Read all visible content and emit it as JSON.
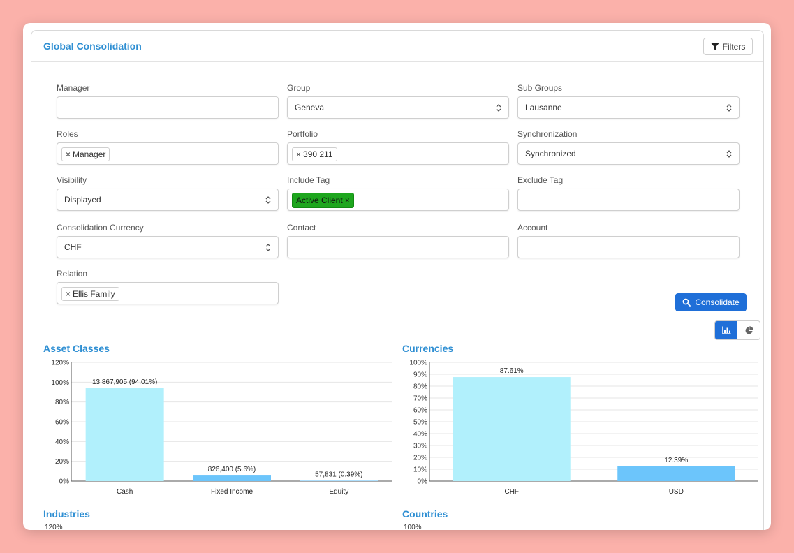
{
  "header": {
    "title": "Global Consolidation",
    "filters_label": "Filters"
  },
  "form": {
    "manager": {
      "label": "Manager",
      "value": ""
    },
    "group": {
      "label": "Group",
      "value": "Geneva"
    },
    "sub_groups": {
      "label": "Sub Groups",
      "value": "Lausanne"
    },
    "roles": {
      "label": "Roles",
      "tags": [
        "Manager"
      ]
    },
    "portfolio": {
      "label": "Portfolio",
      "tags": [
        "390 211"
      ]
    },
    "synchronization": {
      "label": "Synchronization",
      "value": "Synchronized"
    },
    "visibility": {
      "label": "Visibility",
      "value": "Displayed"
    },
    "include_tag": {
      "label": "Include Tag",
      "tags": [
        "Active Client"
      ],
      "tag_color": "#1ea61e"
    },
    "exclude_tag": {
      "label": "Exclude Tag",
      "value": ""
    },
    "consolidation_currency": {
      "label": "Consolidation Currency",
      "value": "CHF"
    },
    "contact": {
      "label": "Contact",
      "value": ""
    },
    "account": {
      "label": "Account",
      "value": ""
    },
    "relation": {
      "label": "Relation",
      "tags": [
        "Ellis Family"
      ]
    },
    "consolidate_label": "Consolidate",
    "tag_remove_glyph": "×"
  },
  "view_toggle": {
    "options": [
      "bar-chart-icon",
      "pie-chart-icon"
    ],
    "active": "bar-chart-icon"
  },
  "colors": {
    "accent": "#2f8fd3",
    "primary_button": "#1f6fd8",
    "bar_light": "#b1f0fc",
    "bar_blue": "#6cc5fb"
  },
  "sections": {
    "industries": "Industries",
    "countries": "Countries",
    "industries_top_tick": "120%",
    "countries_top_tick": "100%"
  },
  "chart_data": [
    {
      "type": "bar",
      "title": "Asset Classes",
      "categories": [
        "Cash",
        "Fixed Income",
        "Equity"
      ],
      "values": [
        94.01,
        5.6,
        0.39
      ],
      "data_labels": [
        "13,867,905 (94.01%)",
        "826,400 (5.6%)",
        "57,831 (0.39%)"
      ],
      "colors": [
        "#b1f0fc",
        "#6cc5fb",
        "#6cc5fb"
      ],
      "ylim": [
        0,
        120
      ],
      "yticks": [
        "0%",
        "20%",
        "40%",
        "60%",
        "80%",
        "100%",
        "120%"
      ],
      "grid": true
    },
    {
      "type": "bar",
      "title": "Currencies",
      "categories": [
        "CHF",
        "USD"
      ],
      "values": [
        87.61,
        12.39
      ],
      "data_labels": [
        "87.61%",
        "12.39%"
      ],
      "colors": [
        "#b1f0fc",
        "#6cc5fb"
      ],
      "ylim": [
        0,
        100
      ],
      "yticks": [
        "0%",
        "10%",
        "20%",
        "30%",
        "40%",
        "50%",
        "60%",
        "70%",
        "80%",
        "90%",
        "100%"
      ],
      "grid": true
    }
  ]
}
